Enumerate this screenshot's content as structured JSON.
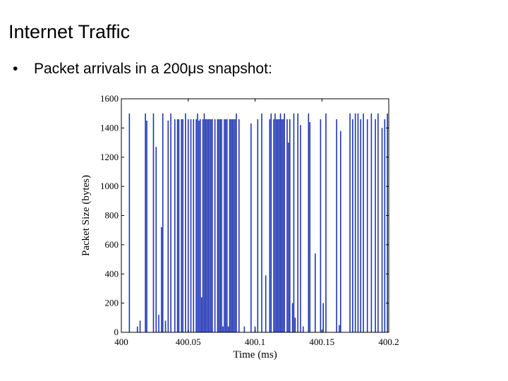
{
  "slide": {
    "title": "Internet Traffic",
    "bullet_marker": "•",
    "bullet_text": "Packet arrivals in a 200μs snapshot:"
  },
  "colors": {
    "bars": "#1f35b4",
    "axis": "#000000"
  },
  "chart_data": {
    "type": "bar",
    "xlabel": "Time (ms)",
    "ylabel": "Packet Size (bytes)",
    "xlim": [
      400,
      400.2
    ],
    "ylim": [
      0,
      1600
    ],
    "xticks": [
      400,
      400.05,
      400.1,
      400.15,
      400.2
    ],
    "xtick_labels": [
      "400",
      "400.05",
      "400.1",
      "400.15",
      "400.2"
    ],
    "yticks": [
      0,
      200,
      400,
      600,
      800,
      1000,
      1200,
      1400,
      1600
    ],
    "grid": false,
    "x": [
      400.006,
      400.012,
      400.014,
      400.018,
      400.019,
      400.024,
      400.026,
      400.028,
      400.03,
      400.031,
      400.033,
      400.035,
      400.037,
      400.04,
      400.042,
      400.043,
      400.045,
      400.046,
      400.048,
      400.05,
      400.052,
      400.054,
      400.056,
      400.057,
      400.058,
      400.059,
      400.06,
      400.061,
      400.062,
      400.063,
      400.064,
      400.065,
      400.066,
      400.067,
      400.068,
      400.07,
      400.072,
      400.073,
      400.074,
      400.075,
      400.076,
      400.077,
      400.078,
      400.079,
      400.08,
      400.081,
      400.082,
      400.083,
      400.084,
      400.085,
      400.086,
      400.088,
      400.092,
      400.097,
      400.1,
      400.102,
      400.105,
      400.108,
      400.111,
      400.112,
      400.114,
      400.115,
      400.116,
      400.117,
      400.118,
      400.119,
      400.12,
      400.121,
      400.122,
      400.124,
      400.125,
      400.126,
      400.128,
      400.129,
      400.13,
      400.132,
      400.134,
      400.136,
      400.14,
      400.141,
      400.145,
      400.149,
      400.151,
      400.153,
      400.161,
      400.163,
      400.164,
      400.171,
      400.173,
      400.175,
      400.177,
      400.179,
      400.181,
      400.184,
      400.187,
      400.19,
      400.192,
      400.195,
      400.197,
      400.199
    ],
    "values": [
      1500,
      40,
      80,
      1500,
      1450,
      1500,
      1270,
      120,
      720,
      1500,
      80,
      1450,
      1500,
      1460,
      1460,
      1460,
      1460,
      1460,
      1500,
      1460,
      1460,
      1460,
      1460,
      1500,
      1450,
      1460,
      240,
      1460,
      1500,
      1460,
      1460,
      1460,
      1460,
      1460,
      1460,
      1460,
      1460,
      1460,
      1460,
      1460,
      40,
      1460,
      1460,
      1460,
      40,
      1460,
      1460,
      1460,
      1460,
      1460,
      1500,
      1460,
      40,
      1430,
      40,
      1460,
      1500,
      390,
      1460,
      1500,
      1460,
      1500,
      1460,
      1460,
      1460,
      1500,
      1460,
      1460,
      1500,
      1460,
      1300,
      1460,
      200,
      1500,
      100,
      1500,
      1420,
      40,
      1500,
      1440,
      540,
      1460,
      200,
      1500,
      1460,
      50,
      1380,
      1500,
      1460,
      1500,
      1500,
      1460,
      1500,
      1460,
      1500,
      1460,
      1500,
      1400,
      1460,
      1500
    ]
  }
}
